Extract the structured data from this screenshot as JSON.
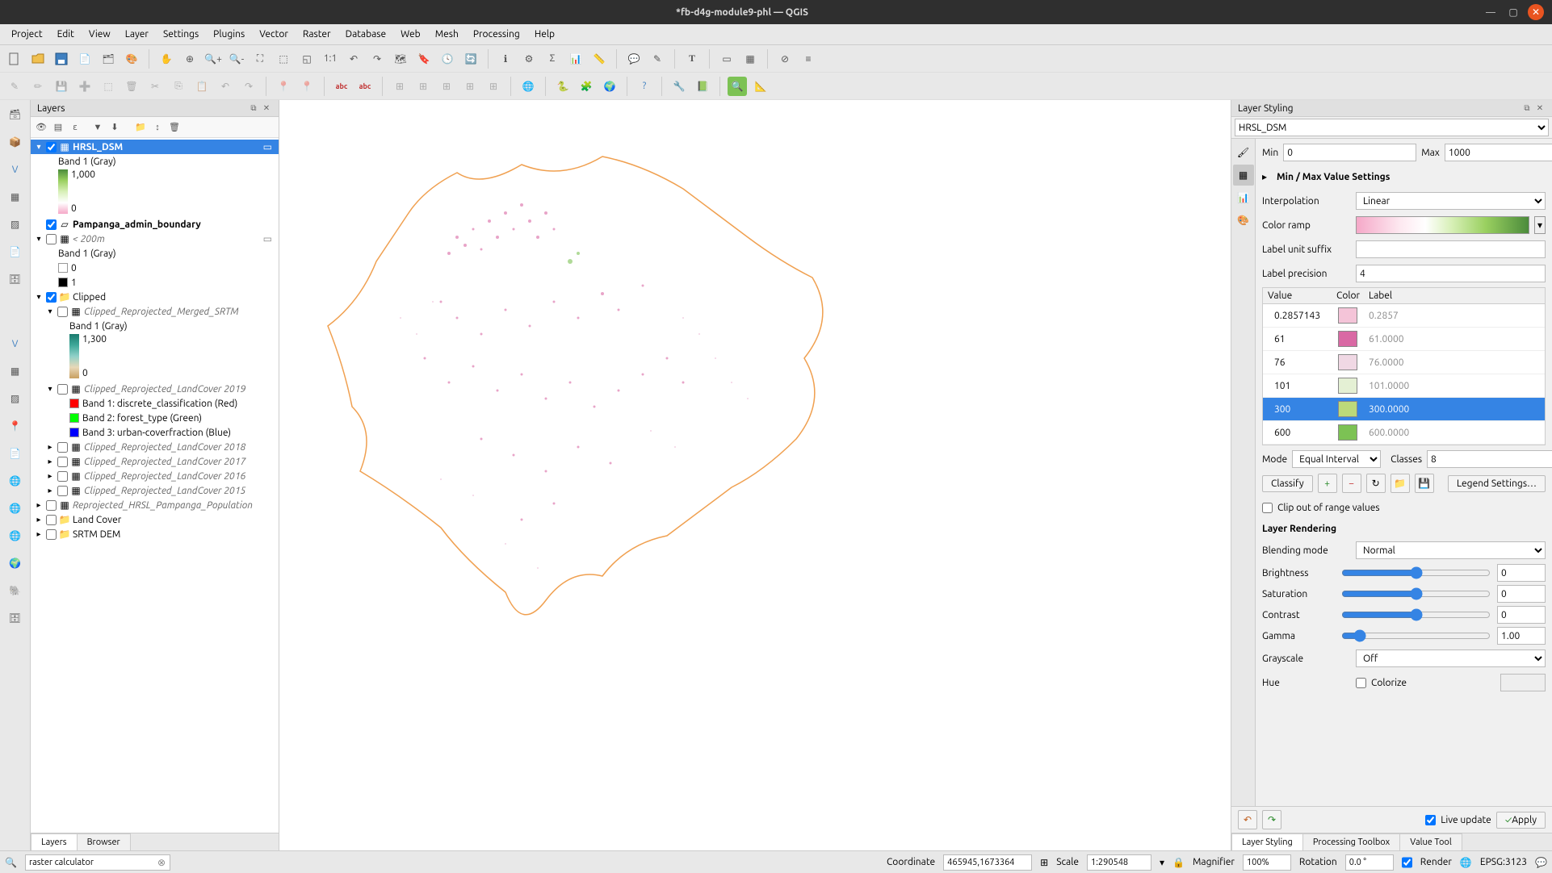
{
  "titlebar": {
    "title": "*fb-d4g-module9-phl — QGIS"
  },
  "menubar": [
    "Project",
    "Edit",
    "View",
    "Layer",
    "Settings",
    "Plugins",
    "Vector",
    "Raster",
    "Database",
    "Web",
    "Mesh",
    "Processing",
    "Help"
  ],
  "layers_panel": {
    "title": "Layers",
    "tabs": {
      "layers": "Layers",
      "browser": "Browser"
    },
    "tree": {
      "hrsl_dsm": {
        "label": "HRSL_DSM",
        "band": "Band 1 (Gray)",
        "max": "1,000",
        "min": "0",
        "gradient": [
          "#4b8b3b",
          "#9ad060",
          "#d8f0b8",
          "#ffffff",
          "#f5a8c8"
        ]
      },
      "pampanga": {
        "label": "Pampanga_admin_boundary"
      },
      "lt200": {
        "label": "< 200m",
        "band": "Band 1 (Gray)",
        "v0": "0",
        "v1": "1"
      },
      "clipped_group": {
        "label": "Clipped"
      },
      "srtm_merged": {
        "label": "Clipped_Reprojected_Merged_SRTM",
        "band": "Band 1 (Gray)",
        "max": "1,300",
        "min": "0",
        "gradient": [
          "#1a7a6e",
          "#3fa899",
          "#8fd0c8",
          "#d8ede9",
          "#e8d8b8",
          "#c8a060"
        ]
      },
      "lc2019": {
        "label": "Clipped_Reprojected_LandCover 2019",
        "b1": "Band 1: discrete_classification (Red)",
        "b2": "Band 2: forest_type (Green)",
        "b3": "Band 3: urban-coverfraction (Blue)"
      },
      "lc2018": {
        "label": "Clipped_Reprojected_LandCover 2018"
      },
      "lc2017": {
        "label": "Clipped_Reprojected_LandCover 2017"
      },
      "lc2016": {
        "label": "Clipped_Reprojected_LandCover 2016"
      },
      "lc2015": {
        "label": "Clipped_Reprojected_LandCover 2015"
      },
      "reproj_pop": {
        "label": "Reprojected_HRSL_Pampanga_Population"
      },
      "landcover_grp": {
        "label": "Land Cover"
      },
      "srtm_dem": {
        "label": "SRTM DEM"
      }
    }
  },
  "styling": {
    "title": "Layer Styling",
    "layer_select": "HRSL_DSM",
    "min_label": "Min",
    "min_value": "0",
    "max_label": "Max",
    "max_value": "1000",
    "minmax_settings": "Min / Max Value Settings",
    "interpolation_label": "Interpolation",
    "interpolation_value": "Linear",
    "colorramp_label": "Color ramp",
    "suffix_label": "Label unit suffix",
    "suffix_value": "",
    "precision_label": "Label precision",
    "precision_value": "4",
    "table_headers": {
      "value": "Value",
      "color": "Color",
      "label": "Label"
    },
    "classes": [
      {
        "value": "0.2857143",
        "color": "#f4c4d8",
        "label": "0.2857"
      },
      {
        "value": "61",
        "color": "#d969a4",
        "label": "61.0000"
      },
      {
        "value": "76",
        "color": "#f0d8e4",
        "label": "76.0000"
      },
      {
        "value": "101",
        "color": "#e4f0d4",
        "label": "101.0000"
      },
      {
        "value": "300",
        "color": "#bcd97a",
        "label": "300.0000",
        "selected": true
      },
      {
        "value": "600",
        "color": "#7cc254",
        "label": "600.0000"
      }
    ],
    "mode_label": "Mode",
    "mode_value": "Equal Interval",
    "classes_label": "Classes",
    "classes_value": "8",
    "classify": "Classify",
    "legend_settings": "Legend Settings…",
    "clip_label": "Clip out of range values",
    "rendering_head": "Layer Rendering",
    "blend_label": "Blending mode",
    "blend_value": "Normal",
    "brightness_label": "Brightness",
    "brightness_value": "0",
    "saturation_label": "Saturation",
    "saturation_value": "0",
    "contrast_label": "Contrast",
    "contrast_value": "0",
    "gamma_label": "Gamma",
    "gamma_value": "1.00",
    "grayscale_label": "Grayscale",
    "grayscale_value": "Off",
    "hue_label": "Hue",
    "colorize_label": "Colorize",
    "live_update": "Live update",
    "apply": "Apply",
    "tabs": {
      "styling": "Layer Styling",
      "toolbox": "Processing Toolbox",
      "value": "Value Tool"
    }
  },
  "statusbar": {
    "search_value": "raster calculator",
    "coord_label": "Coordinate",
    "coord_value": "465945,1673364",
    "scale_label": "Scale",
    "scale_value": "1:290548",
    "magnifier_label": "Magnifier",
    "magnifier_value": "100%",
    "rotation_label": "Rotation",
    "rotation_value": "0.0 °",
    "render_label": "Render",
    "crs": "EPSG:3123"
  },
  "map": {
    "boundary_color": "#f0a050",
    "data_color": "#d969a4",
    "accent_color": "#7cc254"
  }
}
